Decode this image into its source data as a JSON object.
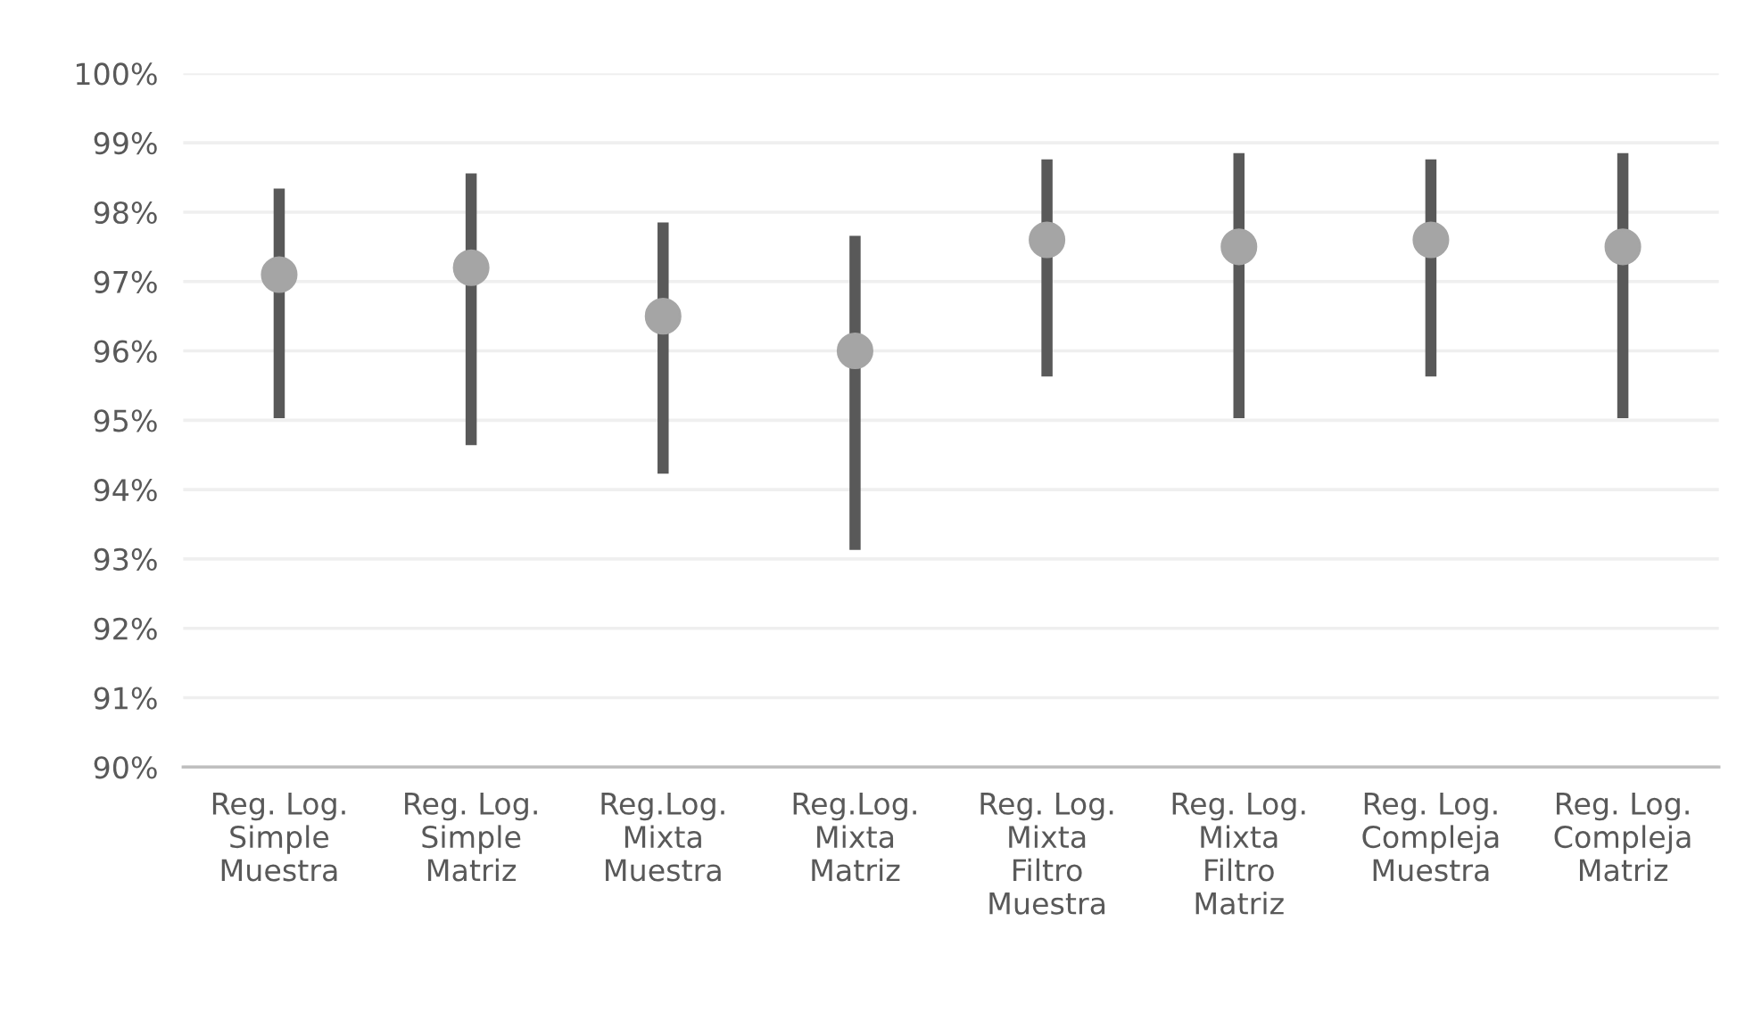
{
  "chart_data": {
    "type": "scatter",
    "categories": [
      "Reg. Log.\nSimple\nMuestra",
      "Reg. Log.\nSimple\nMatriz",
      "Reg.Log.\nMixta\nMuestra",
      "Reg.Log.\nMixta\nMatriz",
      "Reg. Log.\nMixta\nFiltro\nMuestra",
      "Reg. Log.\nMixta\nFiltro\nMatriz",
      "Reg. Log.\nCompleja\nMuestra",
      "Reg. Log.\nCompleja\nMatriz"
    ],
    "series": [
      {
        "color": "#a5a5a5",
        "values": [
          97.1,
          97.2,
          96.5,
          96.0,
          97.6,
          97.5,
          97.6,
          97.5
        ],
        "errors": [
          [
            95.03,
            98.34
          ],
          [
            94.64,
            98.56
          ],
          [
            94.23,
            97.85
          ],
          [
            93.13,
            97.66
          ],
          [
            95.63,
            98.76
          ],
          [
            95.03,
            98.85
          ],
          [
            95.63,
            98.76
          ],
          [
            95.03,
            98.85
          ]
        ]
      }
    ],
    "ylim": [
      90,
      100
    ],
    "yticks": [
      {
        "value": 90,
        "label": "90%"
      },
      {
        "value": 91,
        "label": "91%"
      },
      {
        "value": 92,
        "label": "92%"
      },
      {
        "value": 93,
        "label": "93%"
      },
      {
        "value": 94,
        "label": "94%"
      },
      {
        "value": 95,
        "label": "95%"
      },
      {
        "value": 96,
        "label": "96%"
      },
      {
        "value": 97,
        "label": "97%"
      },
      {
        "value": 98,
        "label": "98%"
      },
      {
        "value": 99,
        "label": "99%"
      },
      {
        "value": 100,
        "label": "100%"
      }
    ],
    "grid": "y",
    "marker": "circle",
    "legend": false
  }
}
